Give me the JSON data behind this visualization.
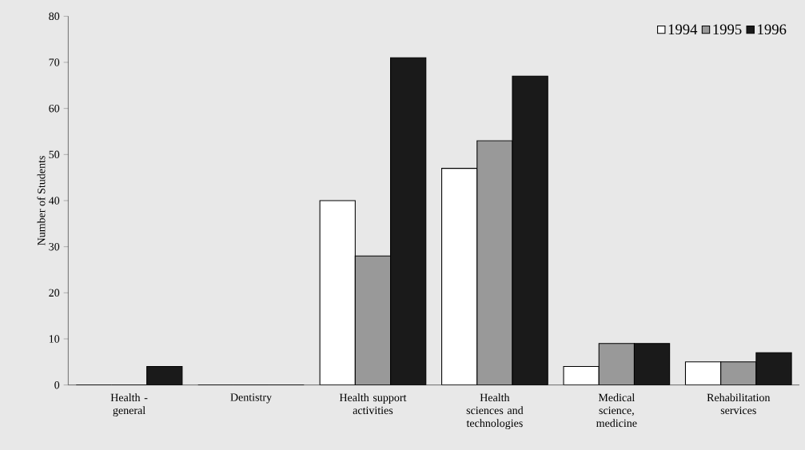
{
  "chart_data": {
    "type": "bar",
    "ylabel": "Number of Students",
    "categories": [
      "Health - general",
      "Dentistry",
      "Health support activities",
      "Health sciences and technologies",
      "Medical science, medicine",
      "Rehabilitation services"
    ],
    "series": [
      {
        "name": "1994",
        "color": "#ffffff",
        "values": [
          0,
          0,
          40,
          47,
          4,
          5
        ]
      },
      {
        "name": "1995",
        "color": "#999999",
        "values": [
          0,
          0,
          28,
          53,
          9,
          5
        ]
      },
      {
        "name": "1996",
        "color": "#1a1a1a",
        "values": [
          4,
          0,
          71,
          67,
          9,
          7
        ]
      }
    ],
    "ylim": [
      0,
      80
    ],
    "yticks": [
      0,
      10,
      20,
      30,
      40,
      50,
      60,
      70,
      80
    ],
    "legend": "top right",
    "grid": false
  }
}
